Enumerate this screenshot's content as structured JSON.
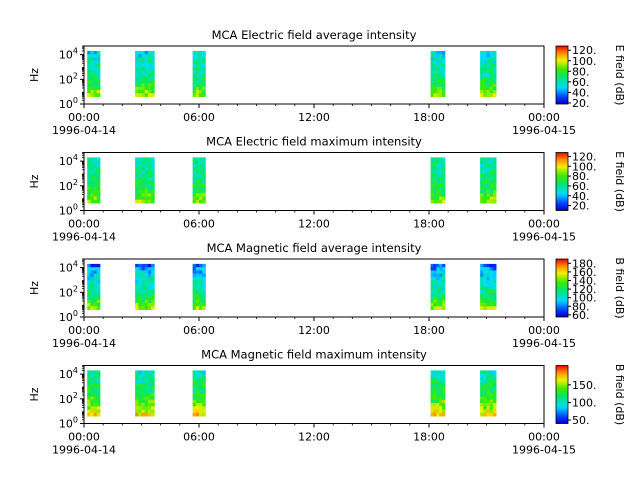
{
  "figure": {
    "background": "#ffffff",
    "panel_background": "#ffffff"
  },
  "chart_data": [
    {
      "type": "heatmap",
      "title": "MCA  Electric field average intensity",
      "xlabel": "",
      "ylabel": "Hz",
      "y_scale": "log",
      "ylim": [
        1,
        50000
      ],
      "y_ticks": [
        {
          "value": 1,
          "base": "10",
          "exp": "0"
        },
        {
          "value": 100,
          "base": "10",
          "exp": "2"
        },
        {
          "value": 10000,
          "base": "10",
          "exp": "4"
        }
      ],
      "xlim": [
        "1996-04-14 00:00",
        "1996-04-15 00:00"
      ],
      "x_ticks": [
        {
          "time": "1996-04-14 00:00",
          "label": "00:00",
          "date": "1996-04-14"
        },
        {
          "time": "1996-04-14 06:00",
          "label": "06:00",
          "date": ""
        },
        {
          "time": "1996-04-14 12:00",
          "label": "12:00",
          "date": ""
        },
        {
          "time": "1996-04-14 18:00",
          "label": "18:00",
          "date": ""
        },
        {
          "time": "1996-04-15 00:00",
          "label": "00:00",
          "date": "1996-04-15"
        }
      ],
      "colorbar": {
        "label": "E field (dB)",
        "range": [
          18,
          128
        ],
        "ticks": [
          20,
          40,
          60,
          80,
          100,
          120
        ],
        "tick_labels": [
          "20.",
          "40.",
          "60.",
          "80.",
          "100.",
          "120."
        ],
        "colormap": "rainbow"
      },
      "data_intervals": [
        {
          "start": "1996-04-14 00:10",
          "end": "1996-04-14 00:50"
        },
        {
          "start": "1996-04-14 02:40",
          "end": "1996-04-14 03:40"
        },
        {
          "start": "1996-04-14 05:40",
          "end": "1996-04-14 06:20"
        },
        {
          "start": "1996-04-14 18:05",
          "end": "1996-04-14 18:50"
        },
        {
          "start": "1996-04-14 20:40",
          "end": "1996-04-14 21:30"
        }
      ],
      "spectrum_profile": {
        "freq_hz": [
          4,
          12,
          40,
          120,
          400,
          1200,
          4000,
          20000
        ],
        "intensity_db": [
          95,
          85,
          75,
          68,
          62,
          60,
          58,
          50
        ]
      }
    },
    {
      "type": "heatmap",
      "title": "MCA  Electric field maximum intensity",
      "xlabel": "",
      "ylabel": "Hz",
      "y_scale": "log",
      "ylim": [
        1,
        50000
      ],
      "y_ticks": [
        {
          "value": 1,
          "base": "10",
          "exp": "0"
        },
        {
          "value": 100,
          "base": "10",
          "exp": "2"
        },
        {
          "value": 10000,
          "base": "10",
          "exp": "4"
        }
      ],
      "xlim": [
        "1996-04-14 00:00",
        "1996-04-15 00:00"
      ],
      "x_ticks": [
        {
          "time": "1996-04-14 00:00",
          "label": "00:00",
          "date": "1996-04-14"
        },
        {
          "time": "1996-04-14 06:00",
          "label": "06:00",
          "date": ""
        },
        {
          "time": "1996-04-14 12:00",
          "label": "12:00",
          "date": ""
        },
        {
          "time": "1996-04-14 18:00",
          "label": "18:00",
          "date": ""
        },
        {
          "time": "1996-04-15 00:00",
          "label": "00:00",
          "date": "1996-04-15"
        }
      ],
      "colorbar": {
        "label": "E field (dB)",
        "range": [
          10,
          128
        ],
        "ticks": [
          20,
          40,
          60,
          80,
          100,
          120
        ],
        "tick_labels": [
          "20.",
          "40.",
          "60.",
          "80.",
          "100.",
          "120."
        ],
        "colormap": "rainbow"
      },
      "data_intervals": [
        {
          "start": "1996-04-14 00:10",
          "end": "1996-04-14 00:50"
        },
        {
          "start": "1996-04-14 02:40",
          "end": "1996-04-14 03:40"
        },
        {
          "start": "1996-04-14 05:40",
          "end": "1996-04-14 06:20"
        },
        {
          "start": "1996-04-14 18:05",
          "end": "1996-04-14 18:50"
        },
        {
          "start": "1996-04-14 20:40",
          "end": "1996-04-14 21:30"
        }
      ],
      "spectrum_profile": {
        "freq_hz": [
          4,
          12,
          40,
          120,
          400,
          1200,
          4000,
          20000
        ],
        "intensity_db": [
          90,
          80,
          72,
          66,
          62,
          60,
          58,
          55
        ]
      }
    },
    {
      "type": "heatmap",
      "title": "MCA  Magnetic field average intensity",
      "xlabel": "",
      "ylabel": "Hz",
      "y_scale": "log",
      "ylim": [
        1,
        50000
      ],
      "y_ticks": [
        {
          "value": 1,
          "base": "10",
          "exp": "0"
        },
        {
          "value": 100,
          "base": "10",
          "exp": "2"
        },
        {
          "value": 10000,
          "base": "10",
          "exp": "4"
        }
      ],
      "xlim": [
        "1996-04-14 00:00",
        "1996-04-15 00:00"
      ],
      "x_ticks": [
        {
          "time": "1996-04-14 00:00",
          "label": "00:00",
          "date": "1996-04-14"
        },
        {
          "time": "1996-04-14 06:00",
          "label": "06:00",
          "date": ""
        },
        {
          "time": "1996-04-14 12:00",
          "label": "12:00",
          "date": ""
        },
        {
          "time": "1996-04-14 18:00",
          "label": "18:00",
          "date": ""
        },
        {
          "time": "1996-04-15 00:00",
          "label": "00:00",
          "date": "1996-04-15"
        }
      ],
      "colorbar": {
        "label": "B field (dB)",
        "range": [
          55,
          190
        ],
        "ticks": [
          60,
          80,
          100,
          120,
          140,
          160,
          180
        ],
        "tick_labels": [
          "60.",
          "80.",
          "100.",
          "120.",
          "140.",
          "160.",
          "180."
        ],
        "colormap": "rainbow"
      },
      "data_intervals": [
        {
          "start": "1996-04-14 00:10",
          "end": "1996-04-14 00:50"
        },
        {
          "start": "1996-04-14 02:40",
          "end": "1996-04-14 03:40"
        },
        {
          "start": "1996-04-14 05:40",
          "end": "1996-04-14 06:20"
        },
        {
          "start": "1996-04-14 18:05",
          "end": "1996-04-14 18:50"
        },
        {
          "start": "1996-04-14 20:40",
          "end": "1996-04-14 21:30"
        }
      ],
      "spectrum_profile": {
        "freq_hz": [
          4,
          12,
          40,
          120,
          400,
          1200,
          4000,
          20000
        ],
        "intensity_db": [
          150,
          135,
          120,
          112,
          105,
          100,
          92,
          70
        ]
      }
    },
    {
      "type": "heatmap",
      "title": "MCA  Magnetic field maximum intensity",
      "xlabel": "",
      "ylabel": "Hz",
      "y_scale": "log",
      "ylim": [
        1,
        50000
      ],
      "y_ticks": [
        {
          "value": 1,
          "base": "10",
          "exp": "0"
        },
        {
          "value": 100,
          "base": "10",
          "exp": "2"
        },
        {
          "value": 10000,
          "base": "10",
          "exp": "4"
        }
      ],
      "xlim": [
        "1996-04-14 00:00",
        "1996-04-15 00:00"
      ],
      "x_ticks": [
        {
          "time": "1996-04-14 00:00",
          "label": "00:00",
          "date": "1996-04-14"
        },
        {
          "time": "1996-04-14 06:00",
          "label": "06:00",
          "date": ""
        },
        {
          "time": "1996-04-14 12:00",
          "label": "12:00",
          "date": ""
        },
        {
          "time": "1996-04-14 18:00",
          "label": "18:00",
          "date": ""
        },
        {
          "time": "1996-04-15 00:00",
          "label": "00:00",
          "date": "1996-04-15"
        }
      ],
      "colorbar": {
        "label": "B field (dB)",
        "range": [
          40,
          205
        ],
        "ticks": [
          50,
          100,
          150
        ],
        "tick_labels": [
          "50.",
          "100.",
          "150."
        ],
        "colormap": "rainbow"
      },
      "data_intervals": [
        {
          "start": "1996-04-14 00:10",
          "end": "1996-04-14 00:50"
        },
        {
          "start": "1996-04-14 02:40",
          "end": "1996-04-14 03:40"
        },
        {
          "start": "1996-04-14 05:40",
          "end": "1996-04-14 06:20"
        },
        {
          "start": "1996-04-14 18:05",
          "end": "1996-04-14 18:50"
        },
        {
          "start": "1996-04-14 20:40",
          "end": "1996-04-14 21:30"
        }
      ],
      "spectrum_profile": {
        "freq_hz": [
          4,
          12,
          40,
          120,
          400,
          1200,
          4000,
          20000
        ],
        "intensity_db": [
          175,
          158,
          140,
          130,
          122,
          118,
          110,
          95
        ]
      }
    }
  ]
}
